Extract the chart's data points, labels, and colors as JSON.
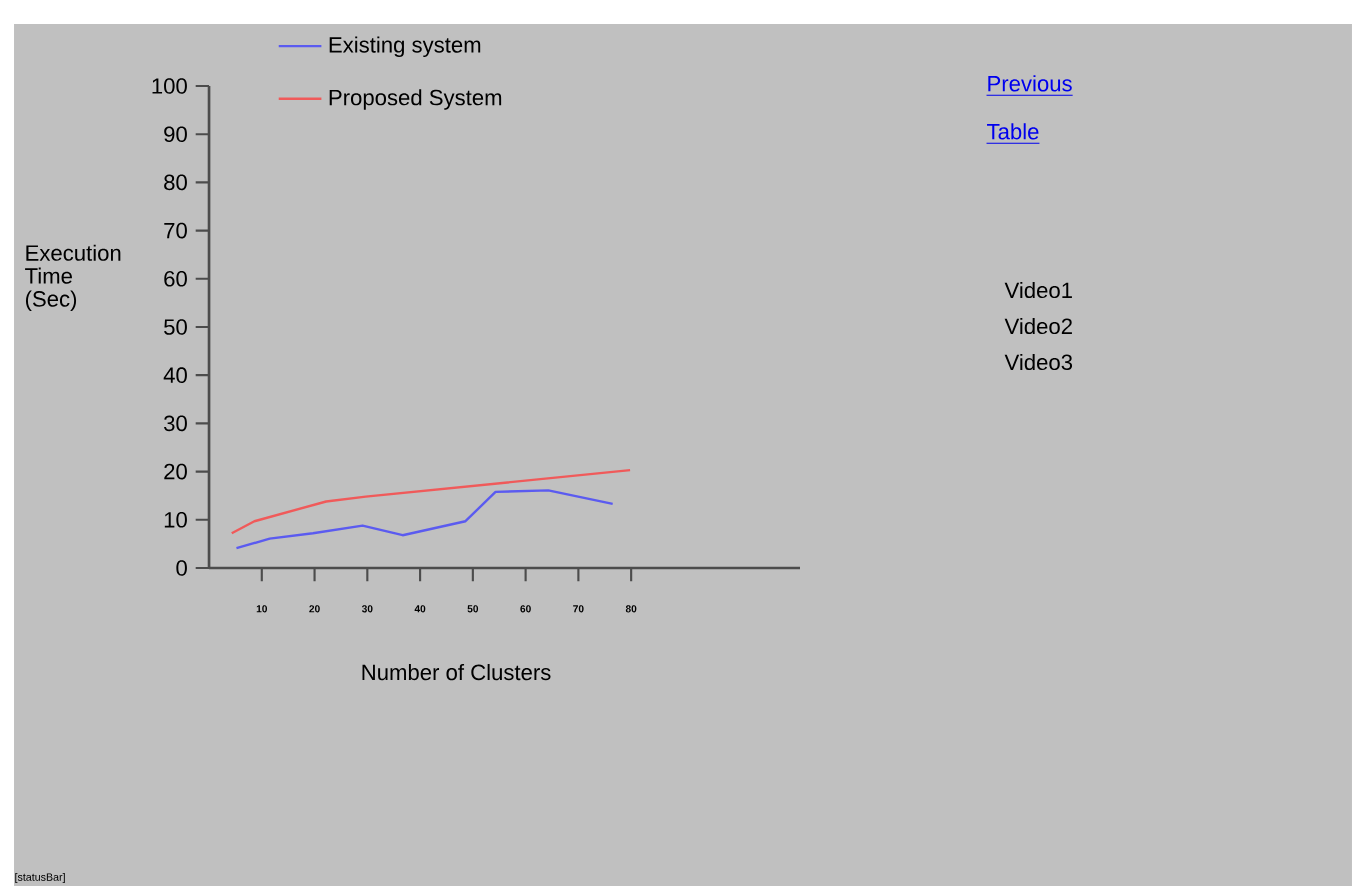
{
  "chart_data": {
    "type": "line",
    "xlabel": "Number of Clusters",
    "ylabel": "Execution Time (Sec)",
    "xlim": [
      0,
      112
    ],
    "ylim": [
      0,
      100
    ],
    "xticks": [
      10,
      20,
      30,
      40,
      50,
      60,
      70,
      80
    ],
    "yticks": [
      0,
      10,
      20,
      30,
      40,
      50,
      60,
      70,
      80,
      90,
      100
    ],
    "legend": "top",
    "series": [
      {
        "name": "Existing system",
        "color": "#5b5bf0",
        "x": [
          5.2,
          11.5,
          19.7,
          29.1,
          36.7,
          48.6,
          54.3,
          64.3,
          76.5
        ],
        "values": [
          4.1,
          6.1,
          7.2,
          8.8,
          6.8,
          9.7,
          15.8,
          16.1,
          13.3
        ]
      },
      {
        "name": "Proposed System",
        "color": "#f05a5a",
        "x": [
          4.3,
          8.6,
          22.2,
          29.7,
          79.8
        ],
        "values": [
          7.2,
          9.7,
          13.8,
          14.8,
          20.3
        ]
      }
    ],
    "annotations": [
      "Previous",
      "Table",
      "Video1",
      "Video2",
      "Video3",
      "[statusBar]"
    ]
  }
}
